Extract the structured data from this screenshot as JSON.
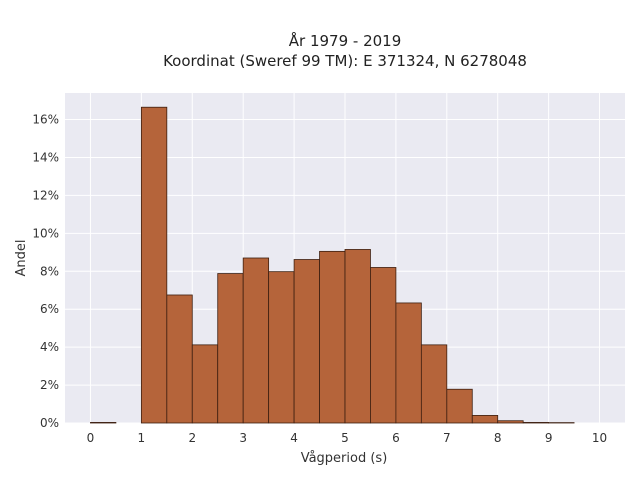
{
  "chart_data": {
    "type": "bar",
    "title": "År 1979 - 2019",
    "subtitle": "Koordinat (Sweref 99 TM): E 371324, N 6278048",
    "xlabel": "Vågperiod (s)",
    "ylabel": "Andel",
    "xlim": [
      -0.5,
      10.5
    ],
    "ylim": [
      0,
      17.4
    ],
    "x_ticks": [
      0,
      1,
      2,
      3,
      4,
      5,
      6,
      7,
      8,
      9,
      10
    ],
    "x_tick_labels": [
      "0",
      "1",
      "2",
      "3",
      "4",
      "5",
      "6",
      "7",
      "8",
      "9",
      "10"
    ],
    "y_ticks": [
      0,
      2,
      4,
      6,
      8,
      10,
      12,
      14,
      16
    ],
    "y_tick_labels": [
      "0%",
      "2%",
      "4%",
      "6%",
      "8%",
      "10%",
      "12%",
      "14%",
      "16%"
    ],
    "bin_width": 0.5,
    "bins": [
      {
        "start": 0.0,
        "value": 0.03
      },
      {
        "start": 0.5,
        "value": 0.0
      },
      {
        "start": 1.0,
        "value": 16.65
      },
      {
        "start": 1.5,
        "value": 6.75
      },
      {
        "start": 2.0,
        "value": 4.12
      },
      {
        "start": 2.5,
        "value": 7.88
      },
      {
        "start": 3.0,
        "value": 8.7
      },
      {
        "start": 3.5,
        "value": 7.98
      },
      {
        "start": 4.0,
        "value": 8.62
      },
      {
        "start": 4.5,
        "value": 9.05
      },
      {
        "start": 5.0,
        "value": 9.15
      },
      {
        "start": 5.5,
        "value": 8.2
      },
      {
        "start": 6.0,
        "value": 6.33
      },
      {
        "start": 6.5,
        "value": 4.12
      },
      {
        "start": 7.0,
        "value": 1.78
      },
      {
        "start": 7.5,
        "value": 0.4
      },
      {
        "start": 8.0,
        "value": 0.12
      },
      {
        "start": 8.5,
        "value": 0.03
      },
      {
        "start": 9.0,
        "value": 0.02
      }
    ],
    "grid": true,
    "colors": {
      "bar_fill": "#b5643a",
      "bar_edge": "#3d1f10",
      "plot_bg": "#eaeaf2",
      "grid": "#ffffff"
    }
  }
}
